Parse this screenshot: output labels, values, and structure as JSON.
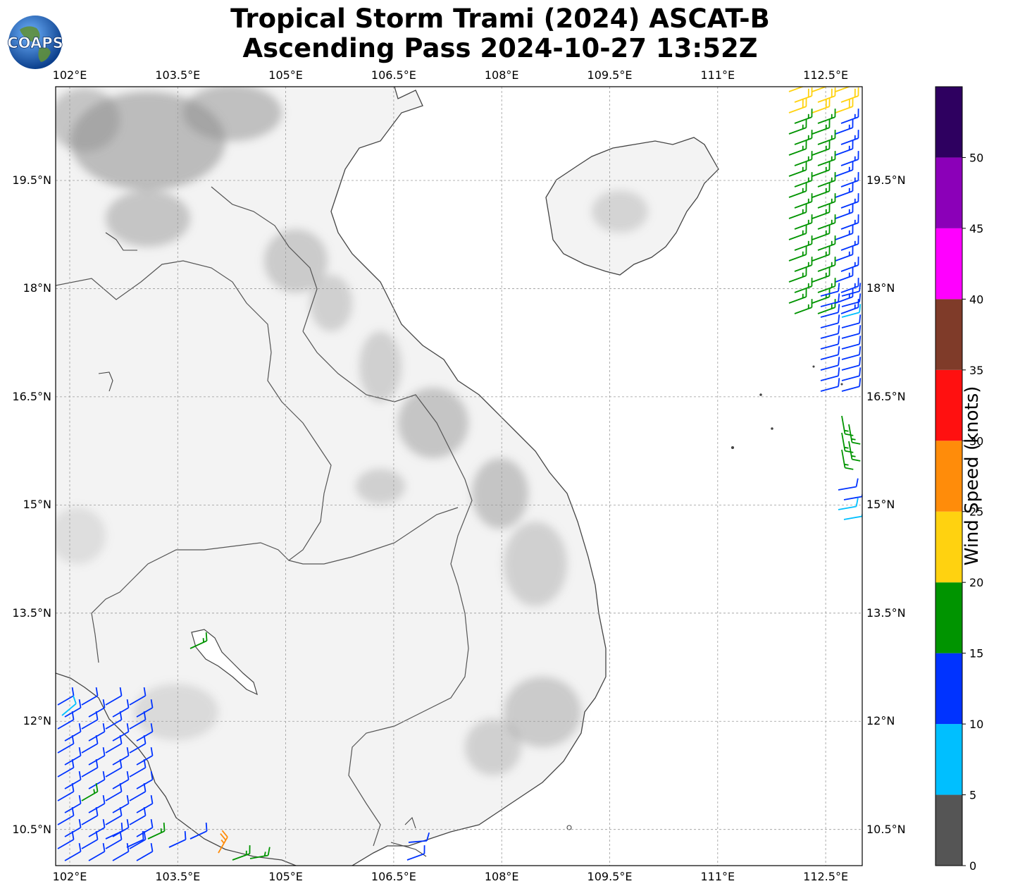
{
  "header": {
    "title_line1": "Tropical Storm Trami (2024) ASCAT-B",
    "title_line2": "Ascending Pass 2024-10-27 13:52Z"
  },
  "logo": {
    "text": "COAPS",
    "icon": "globe-icon"
  },
  "map": {
    "lon_ticks": [
      "102°E",
      "103.5°E",
      "105°E",
      "106.5°E",
      "108°E",
      "109.5°E",
      "111°E",
      "112.5°E"
    ],
    "lat_ticks": [
      "19.5°N",
      "18°N",
      "16.5°N",
      "15°N",
      "13.5°N",
      "12°N",
      "10.5°N"
    ],
    "land_color": "#f2f2f2",
    "ocean_color": "#ffffff",
    "terrain_dark": "#9a9a9a",
    "coastline_color": "#333333"
  },
  "colorbar": {
    "label": "Wind Speed (knots)",
    "tick_labels": [
      "0",
      "5",
      "10",
      "15",
      "20",
      "25",
      "30",
      "35",
      "40",
      "45",
      "50"
    ],
    "bins": [
      {
        "min": 0,
        "max": 5,
        "color": "#555555"
      },
      {
        "min": 5,
        "max": 10,
        "color": "#00bfff"
      },
      {
        "min": 10,
        "max": 15,
        "color": "#0033ff"
      },
      {
        "min": 15,
        "max": 20,
        "color": "#009400"
      },
      {
        "min": 20,
        "max": 25,
        "color": "#ffd210"
      },
      {
        "min": 25,
        "max": 30,
        "color": "#ff8c0a"
      },
      {
        "min": 30,
        "max": 35,
        "color": "#ff1010"
      },
      {
        "min": 35,
        "max": 40,
        "color": "#7f3b29"
      },
      {
        "min": 40,
        "max": 45,
        "color": "#ff00ff"
      },
      {
        "min": 45,
        "max": 50,
        "color": "#8b00b8"
      },
      {
        "min": 50,
        "max": 55,
        "color": "#2e0060"
      }
    ]
  }
}
